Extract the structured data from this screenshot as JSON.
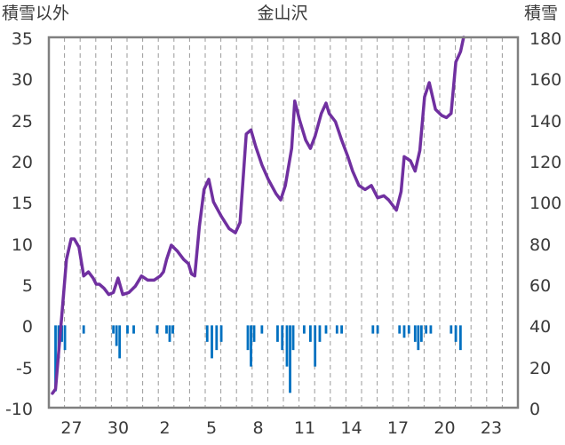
{
  "chart_data": {
    "type": "line",
    "title": "金山沢",
    "left_axis_label": "積雪以外",
    "right_axis_label": "積雪",
    "y_left_range": [
      -10,
      35
    ],
    "y_left_ticks": [
      "35",
      "30",
      "25",
      "20",
      "15",
      "10",
      "5",
      "0",
      "-5",
      "-10"
    ],
    "y_right_range": [
      0,
      180
    ],
    "y_right_ticks": [
      "180",
      "160",
      "140",
      "120",
      "100",
      "80",
      "60",
      "40",
      "20",
      "0"
    ],
    "x_labels": [
      "27",
      "30",
      "2",
      "5",
      "8",
      "11",
      "14",
      "17",
      "20",
      "23"
    ],
    "x_count": 30,
    "grid": "vertical dashed",
    "colors": {
      "snow_line": "#7030a0",
      "bars": "#0070c0",
      "frame": "#808080"
    },
    "series": [
      {
        "axis": "right",
        "kind": "line",
        "points": [
          [
            0.0,
            7
          ],
          [
            0.2,
            9
          ],
          [
            0.6,
            45
          ],
          [
            0.9,
            72
          ],
          [
            1.2,
            82
          ],
          [
            1.4,
            82
          ],
          [
            1.7,
            78
          ],
          [
            2.0,
            64
          ],
          [
            2.3,
            66
          ],
          [
            2.6,
            63
          ],
          [
            2.8,
            60
          ],
          [
            3.0,
            60
          ],
          [
            3.3,
            58
          ],
          [
            3.6,
            55
          ],
          [
            3.9,
            56
          ],
          [
            4.2,
            63
          ],
          [
            4.5,
            55
          ],
          [
            4.9,
            56
          ],
          [
            5.3,
            59
          ],
          [
            5.7,
            64
          ],
          [
            6.1,
            62
          ],
          [
            6.5,
            62
          ],
          [
            6.9,
            64
          ],
          [
            7.1,
            66
          ],
          [
            7.3,
            72
          ],
          [
            7.6,
            79
          ],
          [
            8.0,
            76
          ],
          [
            8.4,
            72
          ],
          [
            8.7,
            70
          ],
          [
            8.9,
            65
          ],
          [
            9.1,
            64
          ],
          [
            9.4,
            88
          ],
          [
            9.7,
            106
          ],
          [
            10.0,
            111
          ],
          [
            10.3,
            100
          ],
          [
            10.8,
            93
          ],
          [
            11.3,
            87
          ],
          [
            11.7,
            85
          ],
          [
            12.0,
            90
          ],
          [
            12.4,
            133
          ],
          [
            12.7,
            135
          ],
          [
            13.0,
            127
          ],
          [
            13.4,
            118
          ],
          [
            13.8,
            111
          ],
          [
            14.3,
            104
          ],
          [
            14.6,
            101
          ],
          [
            14.9,
            108
          ],
          [
            15.3,
            126
          ],
          [
            15.5,
            149
          ],
          [
            15.8,
            140
          ],
          [
            16.2,
            130
          ],
          [
            16.5,
            126
          ],
          [
            16.8,
            132
          ],
          [
            17.2,
            143
          ],
          [
            17.5,
            148
          ],
          [
            17.7,
            143
          ],
          [
            18.1,
            139
          ],
          [
            18.5,
            130
          ],
          [
            18.9,
            122
          ],
          [
            19.2,
            115
          ],
          [
            19.6,
            108
          ],
          [
            20.0,
            106
          ],
          [
            20.4,
            108
          ],
          [
            20.8,
            102
          ],
          [
            21.2,
            103
          ],
          [
            21.5,
            101
          ],
          [
            22.0,
            96
          ],
          [
            22.3,
            105
          ],
          [
            22.5,
            122
          ],
          [
            22.9,
            120
          ],
          [
            23.2,
            115
          ],
          [
            23.5,
            125
          ],
          [
            23.8,
            151
          ],
          [
            24.1,
            158
          ],
          [
            24.5,
            145
          ],
          [
            24.9,
            142
          ],
          [
            25.2,
            141
          ],
          [
            25.5,
            143
          ],
          [
            25.8,
            168
          ],
          [
            26.1,
            173
          ],
          [
            26.3,
            180
          ]
        ]
      },
      {
        "axis": "left",
        "kind": "bar",
        "points": [
          [
            0.2,
            -8
          ],
          [
            0.4,
            -4
          ],
          [
            0.6,
            -2
          ],
          [
            0.8,
            -3
          ],
          [
            2.0,
            -1
          ],
          [
            3.9,
            -1
          ],
          [
            4.1,
            -2.5
          ],
          [
            4.3,
            -4
          ],
          [
            4.8,
            -1
          ],
          [
            5.2,
            -1
          ],
          [
            6.7,
            -1
          ],
          [
            7.3,
            -1
          ],
          [
            7.5,
            -2
          ],
          [
            7.7,
            -1
          ],
          [
            9.9,
            -2
          ],
          [
            10.2,
            -4
          ],
          [
            10.5,
            -3
          ],
          [
            10.8,
            -2
          ],
          [
            12.5,
            -3
          ],
          [
            12.7,
            -5
          ],
          [
            12.9,
            -2
          ],
          [
            13.4,
            -1
          ],
          [
            14.4,
            -2
          ],
          [
            14.7,
            -3
          ],
          [
            15.0,
            -5
          ],
          [
            15.2,
            -8.2
          ],
          [
            15.4,
            -3
          ],
          [
            16.1,
            -1
          ],
          [
            16.5,
            -2
          ],
          [
            16.8,
            -5
          ],
          [
            17.1,
            -2
          ],
          [
            17.5,
            -1
          ],
          [
            18.2,
            -1
          ],
          [
            18.5,
            -1
          ],
          [
            20.5,
            -1
          ],
          [
            20.8,
            -1
          ],
          [
            22.2,
            -1
          ],
          [
            22.5,
            -1.5
          ],
          [
            22.8,
            -1
          ],
          [
            23.2,
            -2
          ],
          [
            23.4,
            -3
          ],
          [
            23.6,
            -2
          ],
          [
            23.9,
            -1
          ],
          [
            24.2,
            -1
          ],
          [
            25.5,
            -1
          ],
          [
            25.8,
            -2
          ],
          [
            26.1,
            -3
          ]
        ]
      }
    ]
  }
}
